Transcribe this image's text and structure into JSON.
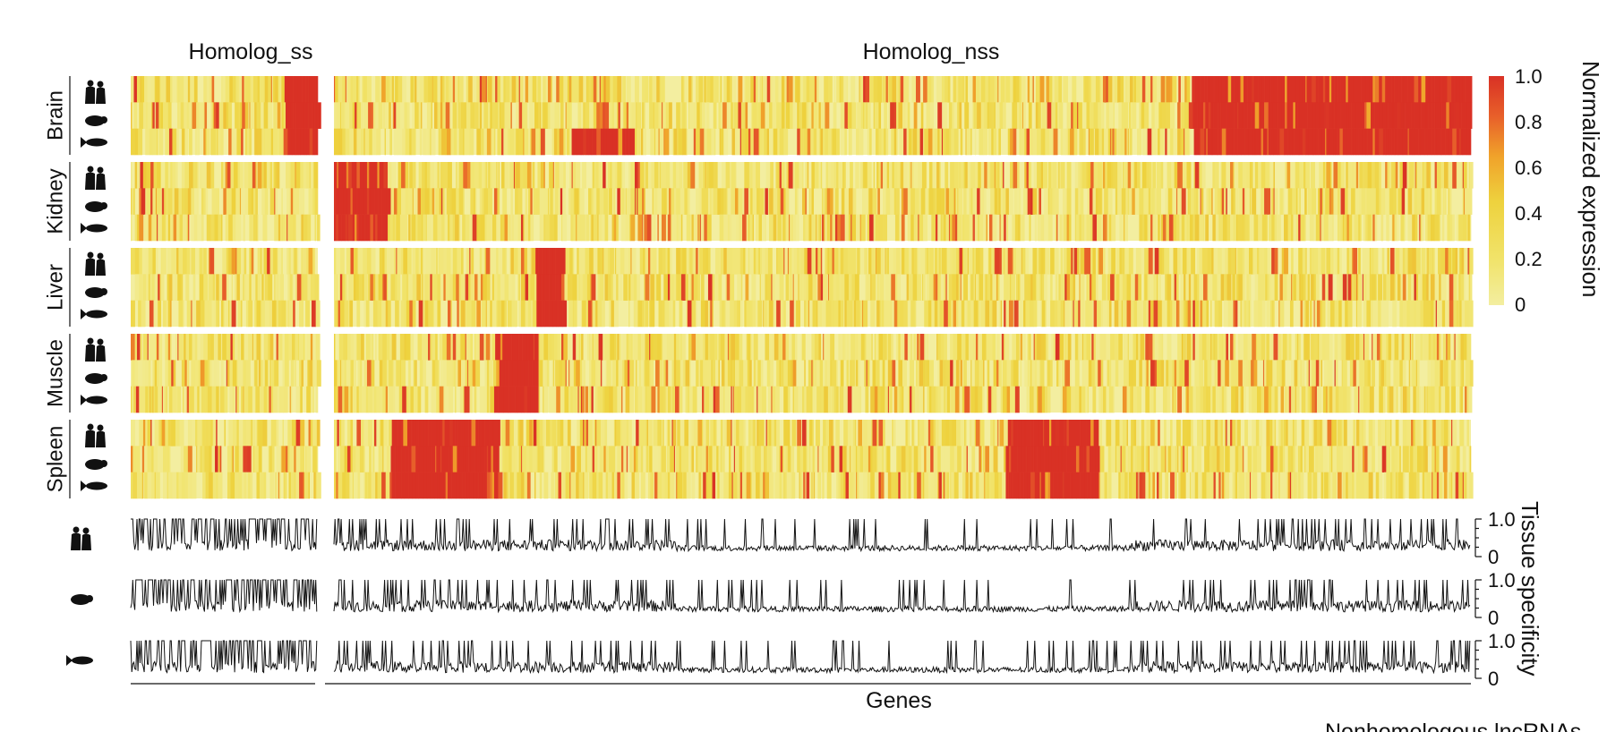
{
  "chart_data": [
    {
      "type": "heatmap",
      "panels": [
        {
          "name": "Homolog_ss",
          "gene_count": 180
        },
        {
          "name": "Homolog_nss",
          "gene_count": 1100
        }
      ],
      "tissues": [
        "Brain",
        "Kidney",
        "Liver",
        "Muscle",
        "Spleen"
      ],
      "species_icons": [
        "human-icon",
        "mouse-icon",
        "fish-icon"
      ],
      "colorbar": {
        "label": "Normalized expression",
        "ticks": [
          "1.0",
          "0.8",
          "0.6",
          "0.4",
          "0.2",
          "0"
        ],
        "range": [
          0,
          1
        ],
        "colors": [
          "#f3eea0",
          "#f1e36a",
          "#eed23e",
          "#f0a22a",
          "#e8612a",
          "#d93125"
        ]
      },
      "high_expression_blocks": [
        {
          "tissue": "Brain",
          "panel": "Homolog_ss",
          "genes": [
            148,
            180
          ]
        },
        {
          "tissue": "Brain",
          "panel": "Homolog_nss",
          "genes": [
            230,
            290
          ],
          "species": [
            "fish"
          ]
        },
        {
          "tissue": "Brain",
          "panel": "Homolog_nss",
          "genes": [
            830,
            1100
          ]
        },
        {
          "tissue": "Kidney",
          "panel": "Homolog_nss",
          "genes": [
            0,
            52
          ]
        },
        {
          "tissue": "Liver",
          "panel": "Homolog_nss",
          "genes": [
            195,
            222
          ]
        },
        {
          "tissue": "Muscle",
          "panel": "Homolog_nss",
          "genes": [
            155,
            195
          ]
        },
        {
          "tissue": "Spleen",
          "panel": "Homolog_nss",
          "genes": [
            55,
            160
          ]
        },
        {
          "tissue": "Spleen",
          "panel": "Homolog_nss",
          "genes": [
            650,
            740
          ]
        }
      ]
    },
    {
      "type": "line",
      "title": "Tissue specificity",
      "xlabel": "Genes",
      "series": [
        {
          "icon": "human-icon",
          "ylim": [
            0,
            1
          ],
          "ticks": [
            "1.0",
            "0"
          ]
        },
        {
          "icon": "mouse-icon",
          "ylim": [
            0,
            1
          ],
          "ticks": [
            "1.0",
            "0"
          ]
        },
        {
          "icon": "fish-icon",
          "ylim": [
            0,
            1
          ],
          "ticks": [
            "1.0",
            "0"
          ]
        }
      ]
    }
  ],
  "footer_text": "Nonhomologous lncRNAs"
}
